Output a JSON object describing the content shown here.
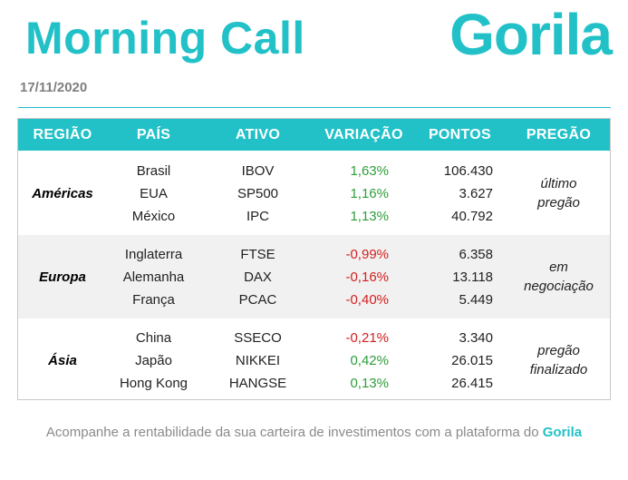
{
  "header": {
    "title": "Morning Call",
    "logo_text": "Gorila",
    "date": "17/11/2020"
  },
  "table": {
    "columns": [
      "REGIÃO",
      "PAÍS",
      "ATIVO",
      "VARIAÇÃO",
      "PONTOS",
      "PREGÃO"
    ],
    "groups": [
      {
        "region": "Américas",
        "status_line1": "último",
        "status_line2": "pregão",
        "rows": [
          {
            "pais": "Brasil",
            "ativo": "IBOV",
            "variacao": "1,63%",
            "pontos": "106.430"
          },
          {
            "pais": "EUA",
            "ativo": "SP500",
            "variacao": "1,16%",
            "pontos": "3.627"
          },
          {
            "pais": "México",
            "ativo": "IPC",
            "variacao": "1,13%",
            "pontos": "40.792"
          }
        ]
      },
      {
        "region": "Europa",
        "status_line1": "em",
        "status_line2": "negociação",
        "rows": [
          {
            "pais": "Inglaterra",
            "ativo": "FTSE",
            "variacao": "-0,99%",
            "pontos": "6.358"
          },
          {
            "pais": "Alemanha",
            "ativo": "DAX",
            "variacao": "-0,16%",
            "pontos": "13.118"
          },
          {
            "pais": "França",
            "ativo": "PCAC",
            "variacao": "-0,40%",
            "pontos": "5.449"
          }
        ]
      },
      {
        "region": "Ásia",
        "status_line1": "pregão",
        "status_line2": "finalizado",
        "rows": [
          {
            "pais": "China",
            "ativo": "SSECO",
            "variacao": "-0,21%",
            "pontos": "3.340"
          },
          {
            "pais": "Japão",
            "ativo": "NIKKEI",
            "variacao": "0,42%",
            "pontos": "26.015"
          },
          {
            "pais": "Hong Kong",
            "ativo": "HANGSE",
            "variacao": "0,13%",
            "pontos": "26.415"
          }
        ]
      }
    ]
  },
  "footer": {
    "text": "Acompanhe a rentabilidade da sua carteira de investimentos com a plataforma do ",
    "brand": "Gorila"
  },
  "colors": {
    "accent": "#22c1c8",
    "positive": "#2e9e3a",
    "negative": "#d42020",
    "row_alt": "#f1f1f1"
  }
}
